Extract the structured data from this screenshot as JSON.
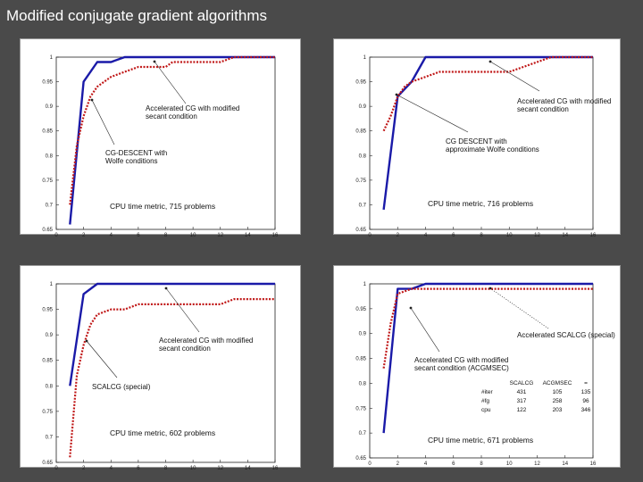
{
  "slide": {
    "title": "Modified conjugate gradient algorithms"
  },
  "colors": {
    "accelerated": "#1a1aa8",
    "baseline": "#c01818"
  },
  "chart_data": [
    {
      "type": "line",
      "title": "",
      "xlabel": "",
      "ylabel": "",
      "xlim": [
        0,
        16
      ],
      "ylim": [
        0.65,
        1.0
      ],
      "x_ticks": [
        "0",
        "2",
        "4",
        "6",
        "8",
        "10",
        "12",
        "14",
        "16"
      ],
      "y_ticks": [
        "0.65",
        "0.7",
        "0.75",
        "0.8",
        "0.85",
        "0.9",
        "0.95",
        "1"
      ],
      "metric_label": "CPU time metric, 715 problems",
      "series": [
        {
          "key": "accelerated",
          "style": "solid",
          "x": [
            1,
            2,
            3,
            4,
            5,
            16
          ],
          "y": [
            0.66,
            0.95,
            0.99,
            0.99,
            1.0,
            1.0
          ]
        },
        {
          "key": "baseline",
          "style": "dotted",
          "x": [
            1,
            1.5,
            2,
            2.5,
            3,
            4,
            5,
            6,
            7,
            8,
            8.5,
            9,
            12,
            13,
            16
          ],
          "y": [
            0.7,
            0.82,
            0.88,
            0.92,
            0.94,
            0.96,
            0.97,
            0.98,
            0.98,
            0.98,
            0.99,
            0.99,
            0.99,
            1.0,
            1.0
          ]
        }
      ],
      "annotations": [
        {
          "lines": [
            "Accelerated CG with modified",
            "secant condition"
          ]
        },
        {
          "lines": [
            "CG-DESCENT with",
            "Wolfe conditions"
          ]
        }
      ]
    },
    {
      "type": "line",
      "title": "",
      "xlabel": "",
      "ylabel": "",
      "xlim": [
        0,
        16
      ],
      "ylim": [
        0.65,
        1.0
      ],
      "x_ticks": [
        "0",
        "2",
        "4",
        "6",
        "8",
        "10",
        "12",
        "14",
        "16"
      ],
      "y_ticks": [
        "0.65",
        "0.7",
        "0.75",
        "0.8",
        "0.85",
        "0.9",
        "0.95",
        "1"
      ],
      "metric_label": "CPU time metric, 716 problems",
      "series": [
        {
          "key": "accelerated",
          "style": "solid",
          "x": [
            1,
            2,
            3,
            4,
            16
          ],
          "y": [
            0.69,
            0.92,
            0.95,
            1.0,
            1.0
          ]
        },
        {
          "key": "baseline",
          "style": "dotted",
          "x": [
            1,
            1.5,
            2,
            2.5,
            3,
            4,
            5,
            8,
            10,
            11,
            12,
            13,
            16
          ],
          "y": [
            0.85,
            0.88,
            0.92,
            0.94,
            0.95,
            0.96,
            0.97,
            0.97,
            0.97,
            0.98,
            0.99,
            1.0,
            1.0
          ]
        }
      ],
      "annotations": [
        {
          "lines": [
            "Accelerated CG with modified",
            "secant condition"
          ]
        },
        {
          "lines": [
            "CG DESCENT with",
            "approximate Wolfe conditions"
          ]
        }
      ]
    },
    {
      "type": "line",
      "title": "",
      "xlabel": "",
      "ylabel": "",
      "xlim": [
        0,
        16
      ],
      "ylim": [
        0.65,
        1.0
      ],
      "x_ticks": [
        "0",
        "2",
        "4",
        "6",
        "8",
        "10",
        "12",
        "14",
        "16"
      ],
      "y_ticks": [
        "0.65",
        "0.7",
        "0.75",
        "0.8",
        "0.85",
        "0.9",
        "0.95",
        "1"
      ],
      "metric_label": "CPU time metric, 602 problems",
      "series": [
        {
          "key": "accelerated",
          "style": "solid",
          "x": [
            1,
            2,
            3,
            16
          ],
          "y": [
            0.8,
            0.98,
            1.0,
            1.0
          ]
        },
        {
          "key": "baseline",
          "style": "dotted",
          "x": [
            1,
            1.5,
            2,
            2.5,
            3,
            4,
            5,
            6,
            7,
            12,
            13,
            14,
            16
          ],
          "y": [
            0.66,
            0.82,
            0.88,
            0.92,
            0.94,
            0.95,
            0.95,
            0.96,
            0.96,
            0.96,
            0.97,
            0.97,
            0.97
          ]
        }
      ],
      "annotations": [
        {
          "lines": [
            "Accelerated CG with modified",
            "secant condition"
          ]
        },
        {
          "lines": [
            "SCALCG (special)"
          ]
        }
      ]
    },
    {
      "type": "line",
      "title": "",
      "xlabel": "",
      "ylabel": "",
      "xlim": [
        0,
        16
      ],
      "ylim": [
        0.65,
        1.0
      ],
      "x_ticks": [
        "0",
        "2",
        "4",
        "6",
        "8",
        "10",
        "12",
        "14",
        "16"
      ],
      "y_ticks": [
        "0.65",
        "0.7",
        "0.75",
        "0.8",
        "0.85",
        "0.9",
        "0.95",
        "1"
      ],
      "metric_label": "CPU time metric, 671 problems",
      "series": [
        {
          "key": "accelerated",
          "style": "solid",
          "x": [
            1,
            2,
            3,
            4,
            16
          ],
          "y": [
            0.7,
            0.99,
            0.99,
            1.0,
            1.0
          ]
        },
        {
          "key": "baseline",
          "style": "dotted",
          "x": [
            1,
            1.5,
            2,
            3,
            4,
            8,
            16
          ],
          "y": [
            0.83,
            0.92,
            0.98,
            0.99,
            0.99,
            0.99,
            0.99
          ]
        }
      ],
      "annotations": [
        {
          "lines": [
            "Accelerated SCALCG (special)"
          ]
        },
        {
          "lines": [
            "Accelerated CG with modified",
            "secant condition (ACGMSEC)"
          ]
        }
      ],
      "table": {
        "columns": [
          "",
          "SCALCG",
          "ACGMSEC",
          "="
        ],
        "rows": [
          [
            "#iter",
            "431",
            "105",
            "135"
          ],
          [
            "#fg",
            "317",
            "258",
            "96"
          ],
          [
            "cpu",
            "122",
            "203",
            "346"
          ]
        ]
      }
    }
  ]
}
